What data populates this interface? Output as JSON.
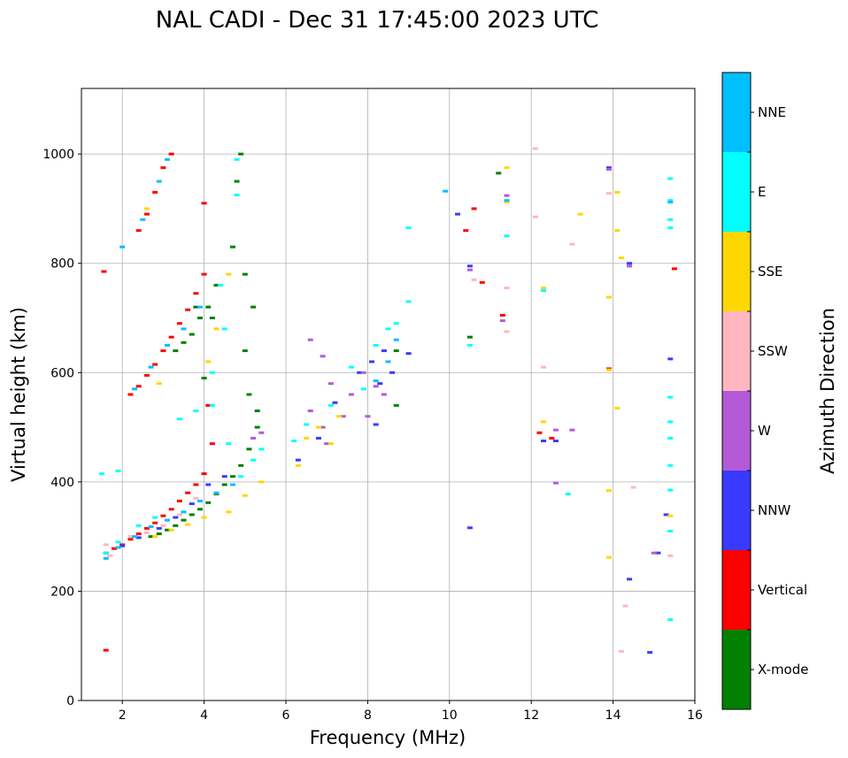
{
  "chart_data": {
    "type": "scatter",
    "title": "NAL CADI - Dec 31 17:45:00 2023 UTC",
    "xlabel": "Frequency (MHz)",
    "ylabel": "Virtual height (km)",
    "xlim": [
      1,
      16
    ],
    "ylim": [
      0,
      1120
    ],
    "xticks": [
      2,
      4,
      6,
      8,
      10,
      12,
      14,
      16
    ],
    "yticks": [
      0,
      200,
      400,
      600,
      800,
      1000
    ],
    "grid": true,
    "colorbar": {
      "title": "Azimuth Direction",
      "categories": [
        {
          "name": "X-mode",
          "color": "#008000"
        },
        {
          "name": "Vertical",
          "color": "#ff0000"
        },
        {
          "name": "NNW",
          "color": "#3a3aff"
        },
        {
          "name": "W",
          "color": "#b45ad8"
        },
        {
          "name": "SSW",
          "color": "#ffb6c1"
        },
        {
          "name": "SSE",
          "color": "#ffd700"
        },
        {
          "name": "E",
          "color": "#00ffff"
        },
        {
          "name": "NNE",
          "color": "#00bfff"
        }
      ]
    },
    "series": [
      {
        "name": "X-mode",
        "points": [
          [
            2.7,
            300
          ],
          [
            2.9,
            305
          ],
          [
            3.1,
            312
          ],
          [
            3.3,
            320
          ],
          [
            3.5,
            330
          ],
          [
            3.7,
            340
          ],
          [
            3.9,
            350
          ],
          [
            4.1,
            362
          ],
          [
            4.3,
            378
          ],
          [
            4.5,
            395
          ],
          [
            4.7,
            410
          ],
          [
            4.9,
            430
          ],
          [
            5.1,
            460
          ],
          [
            5.3,
            500
          ],
          [
            3.3,
            640
          ],
          [
            3.5,
            655
          ],
          [
            3.7,
            670
          ],
          [
            3.9,
            700
          ],
          [
            4.1,
            720
          ],
          [
            4.3,
            760
          ],
          [
            4.0,
            590
          ],
          [
            4.8,
            950
          ],
          [
            4.9,
            1000
          ],
          [
            4.7,
            830
          ],
          [
            5.0,
            780
          ],
          [
            5.2,
            720
          ],
          [
            5.0,
            640
          ],
          [
            5.1,
            560
          ],
          [
            5.3,
            530
          ],
          [
            11.2,
            965
          ],
          [
            8.7,
            640
          ],
          [
            8.7,
            540
          ],
          [
            10.5,
            665
          ],
          [
            4.2,
            700
          ],
          [
            3.8,
            720
          ]
        ]
      },
      {
        "name": "Vertical",
        "points": [
          [
            1.6,
            270
          ],
          [
            1.8,
            278
          ],
          [
            2.0,
            285
          ],
          [
            2.2,
            295
          ],
          [
            2.4,
            305
          ],
          [
            2.6,
            315
          ],
          [
            2.8,
            325
          ],
          [
            3.0,
            338
          ],
          [
            3.2,
            350
          ],
          [
            3.4,
            365
          ],
          [
            3.6,
            380
          ],
          [
            3.8,
            395
          ],
          [
            4.0,
            415
          ],
          [
            2.2,
            560
          ],
          [
            2.4,
            575
          ],
          [
            2.6,
            595
          ],
          [
            2.8,
            615
          ],
          [
            3.0,
            640
          ],
          [
            3.2,
            665
          ],
          [
            3.4,
            690
          ],
          [
            3.6,
            715
          ],
          [
            3.8,
            745
          ],
          [
            4.0,
            780
          ],
          [
            2.4,
            860
          ],
          [
            2.6,
            890
          ],
          [
            2.8,
            930
          ],
          [
            3.0,
            975
          ],
          [
            3.2,
            1000
          ],
          [
            1.55,
            785
          ],
          [
            1.6,
            92
          ],
          [
            4.0,
            910
          ],
          [
            4.1,
            540
          ],
          [
            4.2,
            470
          ],
          [
            10.4,
            860
          ],
          [
            10.6,
            900
          ],
          [
            10.8,
            765
          ],
          [
            11.3,
            705
          ],
          [
            12.2,
            490
          ],
          [
            12.5,
            480
          ],
          [
            15.5,
            790
          ],
          [
            13.9,
            607
          ]
        ]
      },
      {
        "name": "NNW",
        "points": [
          [
            2.0,
            283
          ],
          [
            2.4,
            298
          ],
          [
            2.9,
            315
          ],
          [
            3.3,
            335
          ],
          [
            3.7,
            360
          ],
          [
            4.1,
            395
          ],
          [
            4.5,
            410
          ],
          [
            6.3,
            440
          ],
          [
            6.8,
            480
          ],
          [
            7.2,
            545
          ],
          [
            7.8,
            600
          ],
          [
            8.1,
            620
          ],
          [
            8.3,
            580
          ],
          [
            8.2,
            505
          ],
          [
            8.4,
            640
          ],
          [
            8.6,
            600
          ],
          [
            10.2,
            890
          ],
          [
            10.5,
            795
          ],
          [
            12.3,
            475
          ],
          [
            12.6,
            475
          ],
          [
            14.4,
            800
          ],
          [
            13.9,
            975
          ],
          [
            15.1,
            270
          ],
          [
            15.3,
            340
          ],
          [
            15.4,
            625
          ],
          [
            14.9,
            88
          ],
          [
            14.4,
            222
          ],
          [
            10.5,
            316
          ],
          [
            9.0,
            635
          ]
        ]
      },
      {
        "name": "W",
        "points": [
          [
            6.6,
            660
          ],
          [
            6.9,
            630
          ],
          [
            7.1,
            580
          ],
          [
            6.6,
            530
          ],
          [
            6.9,
            500
          ],
          [
            7.0,
            470
          ],
          [
            7.4,
            520
          ],
          [
            7.6,
            560
          ],
          [
            7.9,
            600
          ],
          [
            8.2,
            575
          ],
          [
            8.4,
            560
          ],
          [
            8.0,
            520
          ],
          [
            5.2,
            480
          ],
          [
            5.4,
            490
          ],
          [
            10.5,
            788
          ],
          [
            11.4,
            924
          ],
          [
            11.3,
            695
          ],
          [
            12.6,
            495
          ],
          [
            13.0,
            495
          ],
          [
            13.9,
            972
          ],
          [
            14.4,
            795
          ],
          [
            15.0,
            270
          ],
          [
            12.6,
            398
          ]
        ]
      },
      {
        "name": "SSW",
        "points": [
          [
            2.2,
            300
          ],
          [
            2.6,
            307
          ],
          [
            3.0,
            320
          ],
          [
            3.4,
            340
          ],
          [
            3.8,
            370
          ],
          [
            1.6,
            285
          ],
          [
            1.7,
            265
          ],
          [
            12.3,
            610
          ],
          [
            12.1,
            1010
          ],
          [
            12.1,
            885
          ],
          [
            11.4,
            675
          ],
          [
            11.4,
            755
          ],
          [
            13.0,
            835
          ],
          [
            14.3,
            173
          ],
          [
            14.2,
            90
          ],
          [
            14.5,
            390
          ],
          [
            15.4,
            265
          ],
          [
            10.6,
            770
          ],
          [
            13.9,
            928
          ]
        ]
      },
      {
        "name": "SSE",
        "points": [
          [
            2.8,
            300
          ],
          [
            3.2,
            312
          ],
          [
            3.6,
            322
          ],
          [
            4.0,
            335
          ],
          [
            4.6,
            345
          ],
          [
            5.0,
            375
          ],
          [
            5.4,
            400
          ],
          [
            6.3,
            430
          ],
          [
            6.5,
            480
          ],
          [
            6.8,
            500
          ],
          [
            7.1,
            470
          ],
          [
            7.3,
            520
          ],
          [
            4.1,
            620
          ],
          [
            4.3,
            680
          ],
          [
            2.6,
            900
          ],
          [
            2.9,
            580
          ],
          [
            4.6,
            780
          ],
          [
            12.3,
            755
          ],
          [
            12.3,
            510
          ],
          [
            13.2,
            890
          ],
          [
            14.1,
            930
          ],
          [
            14.2,
            810
          ],
          [
            14.1,
            860
          ],
          [
            13.9,
            738
          ],
          [
            13.9,
            605
          ],
          [
            14.1,
            535
          ],
          [
            13.9,
            384
          ],
          [
            13.9,
            262
          ],
          [
            15.4,
            338
          ],
          [
            11.4,
            975
          ],
          [
            11.4,
            912
          ]
        ]
      },
      {
        "name": "E",
        "points": [
          [
            1.6,
            270
          ],
          [
            1.9,
            290
          ],
          [
            2.4,
            320
          ],
          [
            2.8,
            335
          ],
          [
            3.4,
            515
          ],
          [
            3.8,
            530
          ],
          [
            4.2,
            540
          ],
          [
            4.6,
            470
          ],
          [
            4.9,
            410
          ],
          [
            5.2,
            440
          ],
          [
            5.4,
            460
          ],
          [
            6.2,
            475
          ],
          [
            6.5,
            505
          ],
          [
            7.1,
            540
          ],
          [
            7.6,
            610
          ],
          [
            7.9,
            570
          ],
          [
            8.2,
            650
          ],
          [
            8.5,
            680
          ],
          [
            8.7,
            690
          ],
          [
            9.0,
            730
          ],
          [
            9.0,
            865
          ],
          [
            4.4,
            760
          ],
          [
            4.5,
            680
          ],
          [
            4.2,
            600
          ],
          [
            1.9,
            420
          ],
          [
            1.5,
            415
          ],
          [
            10.5,
            650
          ],
          [
            11.4,
            850
          ],
          [
            12.3,
            750
          ],
          [
            12.9,
            378
          ],
          [
            15.4,
            955
          ],
          [
            15.4,
            915
          ],
          [
            15.4,
            880
          ],
          [
            15.4,
            865
          ],
          [
            15.4,
            555
          ],
          [
            15.4,
            510
          ],
          [
            15.4,
            480
          ],
          [
            15.4,
            430
          ],
          [
            15.4,
            385
          ],
          [
            15.4,
            310
          ],
          [
            15.4,
            148
          ],
          [
            4.8,
            990
          ],
          [
            4.8,
            925
          ]
        ]
      },
      {
        "name": "NNE",
        "points": [
          [
            1.6,
            260
          ],
          [
            1.9,
            280
          ],
          [
            2.3,
            300
          ],
          [
            2.7,
            318
          ],
          [
            3.1,
            330
          ],
          [
            3.5,
            345
          ],
          [
            3.9,
            365
          ],
          [
            4.3,
            380
          ],
          [
            4.7,
            395
          ],
          [
            2.0,
            830
          ],
          [
            2.5,
            880
          ],
          [
            2.9,
            950
          ],
          [
            3.1,
            990
          ],
          [
            2.3,
            570
          ],
          [
            2.7,
            610
          ],
          [
            3.1,
            650
          ],
          [
            3.5,
            680
          ],
          [
            3.9,
            720
          ],
          [
            8.5,
            620
          ],
          [
            8.7,
            660
          ],
          [
            8.2,
            585
          ],
          [
            9.9,
            932
          ],
          [
            11.4,
            915
          ],
          [
            15.4,
            912
          ]
        ]
      }
    ]
  }
}
